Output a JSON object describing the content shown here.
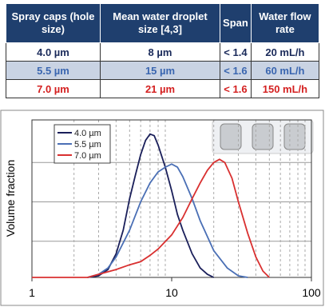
{
  "table": {
    "header": [
      "Spray caps (hole size)",
      "Mean water droplet size [4,3]",
      "Span",
      "Water flow rate"
    ],
    "rows": [
      [
        "4.0 µm",
        "8 µm",
        "< 1.4",
        "20 mL/h"
      ],
      [
        "5.5 µm",
        "15 µm",
        "< 1.6",
        "60 mL/h"
      ],
      [
        "7.0 µm",
        "21 µm",
        "< 1.6",
        "150 mL/h"
      ]
    ]
  },
  "chart_data": {
    "type": "line",
    "y_label": "Volume fraction",
    "xscale": "log",
    "xlim": [
      1,
      100
    ],
    "xticks": [
      1,
      10,
      100
    ],
    "ylim": [
      0,
      1
    ],
    "legend": "upper left",
    "series": [
      {
        "name": "4.0 µm",
        "color": "#1a1f5a",
        "x": [
          2.5,
          3,
          3.5,
          4,
          4.5,
          5,
          5.5,
          6,
          6.5,
          7,
          7.5,
          8,
          9,
          10,
          11,
          12,
          14,
          16,
          18,
          20
        ],
        "values": [
          0,
          0.01,
          0.05,
          0.15,
          0.3,
          0.5,
          0.65,
          0.78,
          0.87,
          0.91,
          0.9,
          0.84,
          0.7,
          0.55,
          0.4,
          0.3,
          0.15,
          0.06,
          0.02,
          0
        ]
      },
      {
        "name": "5.5 µm",
        "color": "#4a6fb5",
        "x": [
          2.5,
          3,
          3.5,
          4,
          5,
          6,
          7,
          8,
          9,
          10,
          11,
          12,
          14,
          16,
          20,
          25,
          30,
          35
        ],
        "values": [
          0,
          0.02,
          0.06,
          0.13,
          0.3,
          0.48,
          0.6,
          0.67,
          0.7,
          0.72,
          0.7,
          0.64,
          0.5,
          0.36,
          0.17,
          0.06,
          0.01,
          0
        ]
      },
      {
        "name": "7.0 µm",
        "color": "#d93030",
        "x": [
          1,
          2.5,
          3,
          4,
          5,
          6,
          7,
          8,
          10,
          12,
          14,
          16,
          18,
          20,
          22,
          24,
          27,
          30,
          35,
          40,
          45,
          50
        ],
        "values": [
          0,
          0,
          0.02,
          0.05,
          0.08,
          0.1,
          0.14,
          0.18,
          0.27,
          0.38,
          0.5,
          0.6,
          0.68,
          0.73,
          0.75,
          0.73,
          0.63,
          0.48,
          0.28,
          0.13,
          0.04,
          0
        ]
      }
    ]
  }
}
